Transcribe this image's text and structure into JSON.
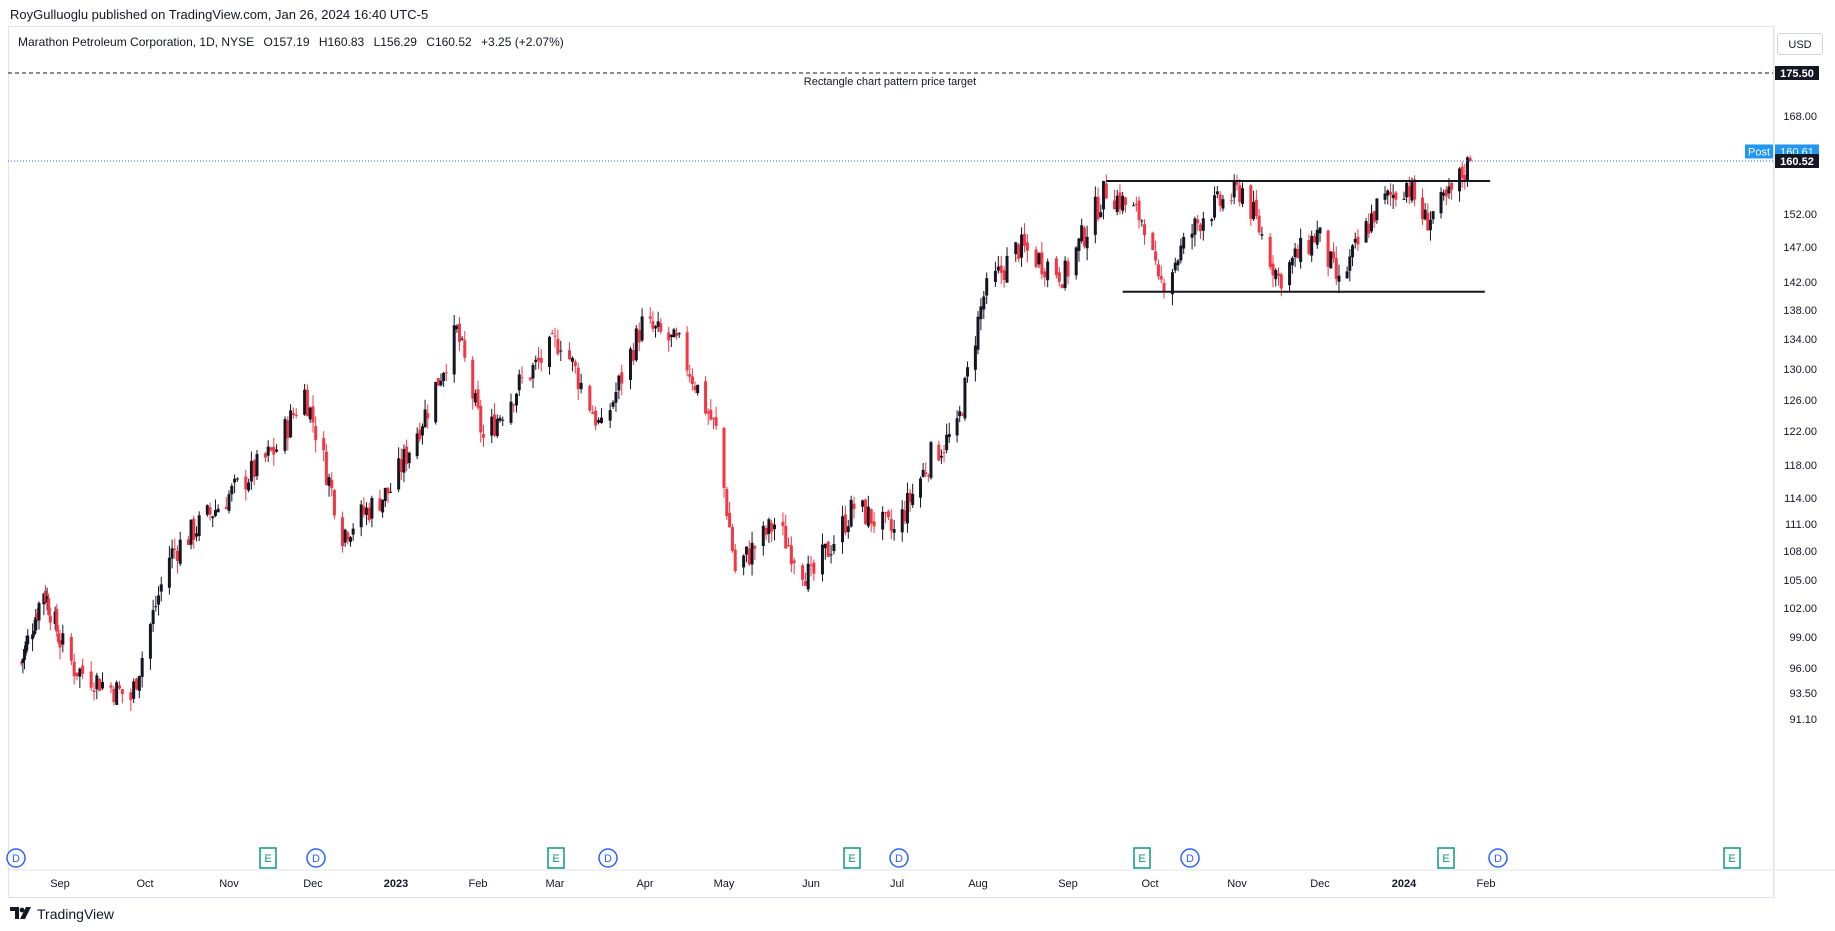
{
  "publisher_line": "RoyGulluoglu published on TradingView.com, Jan 26, 2024 16:40 UTC-5",
  "legend": {
    "symbol": "Marathon Petroleum Corporation, 1D, NYSE",
    "open": "O157.19",
    "high": "H160.83",
    "low": "L156.29",
    "close": "C160.52",
    "change": "+3.25 (+2.07%)"
  },
  "currency": "USD",
  "footer_brand": "TradingView",
  "annotation_text": "Rectangle chart pattern price target",
  "post_label": "Post",
  "colors": {
    "up": "#131722",
    "down": "#f23645",
    "accent": "#2962ff",
    "earnings": "#089981"
  },
  "chart_data": {
    "type": "candlestick",
    "y_axis_ticks": [
      91.1,
      93.5,
      96.0,
      99.0,
      102.0,
      105.0,
      108.0,
      111.0,
      114.0,
      118.0,
      122.0,
      126.0,
      130.0,
      134.0,
      138.0,
      142.0,
      147.0,
      152.0,
      160.52,
      160.61,
      168.0,
      175.5
    ],
    "y_axis_tick_labels": [
      "91.10",
      "93.50",
      "96.00",
      "99.00",
      "102.00",
      "105.00",
      "108.00",
      "111.00",
      "114.00",
      "118.00",
      "122.00",
      "126.00",
      "130.00",
      "134.00",
      "138.00",
      "142.00",
      "147.00",
      "152.00",
      "168.00"
    ],
    "price_labels": {
      "target": "175.50",
      "post": "160.61",
      "last": "160.52"
    },
    "x_axis_labels": [
      "Sep",
      "Oct",
      "Nov",
      "Dec",
      "2023",
      "Feb",
      "Mar",
      "Apr",
      "May",
      "Jun",
      "Jul",
      "Aug",
      "Sep",
      "Oct",
      "Nov",
      "Dec",
      "2024",
      "Feb"
    ],
    "x_axis_bold": [
      "2023",
      "2024"
    ],
    "horizontal_lines": [
      {
        "name": "price-target",
        "value": 175.5,
        "style": "dashed"
      },
      {
        "name": "current-price",
        "value": 160.52,
        "style": "dotted"
      },
      {
        "name": "rectangle-top",
        "value": 157.3,
        "style": "solid",
        "from": "2023-09-15",
        "to": "2024-01-26"
      },
      {
        "name": "rectangle-bottom",
        "value": 140.6,
        "style": "solid",
        "from": "2023-09-21",
        "to": "2024-01-24"
      }
    ],
    "event_markers": [
      {
        "type": "D",
        "month_pos": "Aug 2022"
      },
      {
        "type": "E",
        "month_pos": "Nov 2022"
      },
      {
        "type": "D",
        "month_pos": "Nov 2022"
      },
      {
        "type": "E",
        "month_pos": "Jan 2023"
      },
      {
        "type": "D",
        "month_pos": "Feb 2023"
      },
      {
        "type": "E",
        "month_pos": "May 2023"
      },
      {
        "type": "D",
        "month_pos": "May 2023"
      },
      {
        "type": "E",
        "month_pos": "Aug 2023"
      },
      {
        "type": "D",
        "month_pos": "Aug 2023"
      },
      {
        "type": "E",
        "month_pos": "Oct 2023"
      },
      {
        "type": "D",
        "month_pos": "Nov 2023"
      },
      {
        "type": "E",
        "month_pos": "Jan 2024"
      }
    ],
    "closes_monthly_anchor": [
      [
        "2022-08-08",
        96.5
      ],
      [
        "2022-08-22",
        104.0
      ],
      [
        "2022-09-06",
        96.0
      ],
      [
        "2022-09-26",
        93.0
      ],
      [
        "2022-10-10",
        107.5
      ],
      [
        "2022-10-31",
        114.0
      ],
      [
        "2022-11-18",
        120.0
      ],
      [
        "2022-11-28",
        127.0
      ],
      [
        "2022-12-12",
        110.0
      ],
      [
        "2022-12-30",
        115.0
      ],
      [
        "2023-01-13",
        125.0
      ],
      [
        "2023-01-24",
        135.0
      ],
      [
        "2023-02-03",
        121.0
      ],
      [
        "2023-02-16",
        128.0
      ],
      [
        "2023-03-03",
        134.0
      ],
      [
        "2023-03-17",
        122.0
      ],
      [
        "2023-03-31",
        136.0
      ],
      [
        "2023-04-14",
        133.0
      ],
      [
        "2023-04-28",
        122.0
      ],
      [
        "2023-05-05",
        106.0
      ],
      [
        "2023-05-19",
        111.0
      ],
      [
        "2023-06-01",
        105.0
      ],
      [
        "2023-06-16",
        113.0
      ],
      [
        "2023-06-30",
        110.0
      ],
      [
        "2023-07-14",
        119.0
      ],
      [
        "2023-07-24",
        122.0
      ],
      [
        "2023-08-03",
        140.0
      ],
      [
        "2023-08-15",
        147.0
      ],
      [
        "2023-08-31",
        143.0
      ],
      [
        "2023-09-15",
        156.0
      ],
      [
        "2023-09-29",
        151.0
      ],
      [
        "2023-10-04",
        141.0
      ],
      [
        "2023-10-20",
        152.0
      ],
      [
        "2023-11-03",
        156.0
      ],
      [
        "2023-11-16",
        142.5
      ],
      [
        "2023-11-30",
        149.0
      ],
      [
        "2023-12-08",
        141.5
      ],
      [
        "2023-12-22",
        153.0
      ],
      [
        "2024-01-02",
        157.0
      ],
      [
        "2024-01-09",
        151.0
      ],
      [
        "2024-01-17",
        154.0
      ],
      [
        "2024-01-26",
        160.52
      ]
    ]
  }
}
